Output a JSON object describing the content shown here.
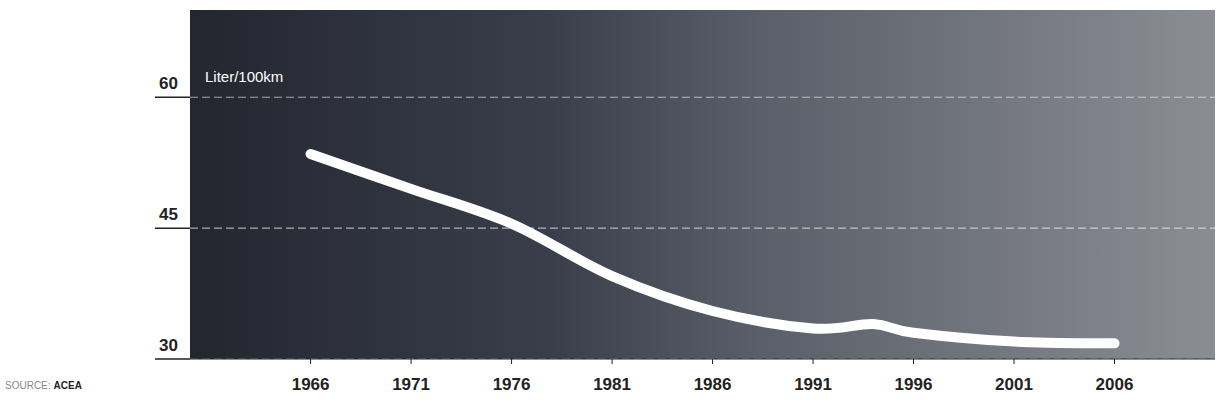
{
  "chart_data": {
    "type": "line",
    "y_label": "Liter/100km",
    "source_label": "SOURCE:",
    "source": "ACEA",
    "x": [
      1966,
      1971,
      1976,
      1981,
      1986,
      1991,
      1994,
      1996,
      2001,
      2006
    ],
    "values": [
      53.5,
      49.5,
      45.5,
      39.5,
      35.5,
      33.5,
      34,
      33,
      32,
      31.8
    ],
    "color": "#ffffff",
    "xlim": [
      1960,
      2011
    ],
    "xticks": [
      1966,
      1971,
      1976,
      1981,
      1986,
      1991,
      1996,
      2001,
      2006
    ],
    "ylim": [
      30,
      70
    ],
    "yticks": [
      30,
      45,
      60
    ],
    "grid": true
  }
}
